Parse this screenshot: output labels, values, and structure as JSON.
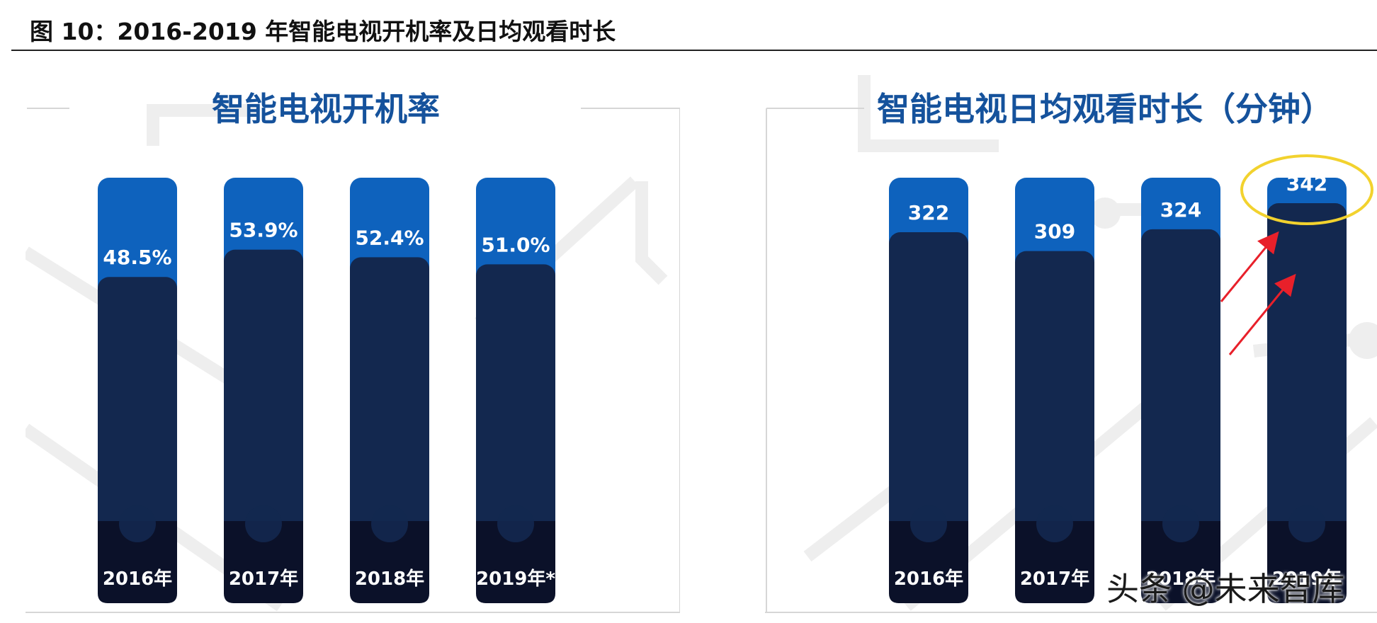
{
  "caption": "图 10：2016-2019 年智能电视开机率及日均观看时长",
  "watermark": "头条 @未来智库",
  "colors": {
    "light_bar": "#0e62bd",
    "dark_bar": "#13284f",
    "base_band": "#0b1129",
    "title": "#15529c",
    "circle": "#f2d22e",
    "arrow": "#e8202a"
  },
  "chart_data": [
    {
      "type": "bar",
      "title": "智能电视开机率",
      "categories": [
        "2016年",
        "2017年",
        "2018年",
        "2019年*"
      ],
      "values": [
        48.5,
        53.9,
        52.4,
        51.0
      ],
      "value_labels": [
        "48.5%",
        "53.9%",
        "52.4%",
        "51.0%"
      ],
      "ylim": [
        0,
        100
      ],
      "xlabel": "",
      "ylabel": "",
      "grid": false,
      "legend": "none"
    },
    {
      "type": "bar",
      "title": "智能电视日均观看时长（分钟）",
      "categories": [
        "2016年",
        "2017年",
        "2018年",
        "2019年"
      ],
      "values": [
        322,
        309,
        324,
        342
      ],
      "value_labels": [
        "322",
        "309",
        "324",
        "342"
      ],
      "xlabel": "",
      "ylabel": "",
      "grid": false,
      "legend": "none",
      "annotations": [
        "yellow ellipse around 342",
        "two red upward arrows"
      ]
    }
  ]
}
